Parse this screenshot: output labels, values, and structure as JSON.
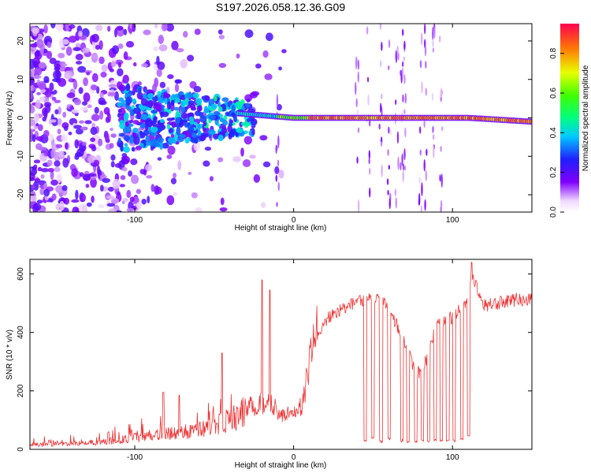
{
  "title": "S197.2026.058.12.36.G09",
  "chart_data": [
    {
      "type": "heatmap",
      "name": "spectrogram",
      "xlabel": "Height of straight line (km)",
      "ylabel": "Frequency (Hz)",
      "xlim": [
        -166,
        150
      ],
      "ylim": [
        -24.5,
        24.5
      ],
      "xticks": [
        -100,
        0,
        100
      ],
      "yticks": [
        -20,
        -10,
        0,
        10,
        20
      ],
      "colorbar": {
        "label": "Normalized spectral amplitude",
        "range": [
          0,
          0.95
        ],
        "ticks": [
          0.0,
          0.2,
          0.4,
          0.6,
          0.8
        ]
      },
      "ridge_frequency_hz": [
        {
          "x": -30,
          "f": 1.0
        },
        {
          "x": 0,
          "f": 0.0
        },
        {
          "x": 110,
          "f": 0.0
        },
        {
          "x": 150,
          "f": -1.0
        }
      ],
      "vertical_streaks_km": [
        -10,
        40,
        47,
        55,
        60,
        65,
        68,
        70,
        80,
        83,
        88,
        93
      ]
    },
    {
      "type": "line",
      "name": "snr",
      "xlabel": "Height of straight line (km)",
      "ylabel": "SNR (10 * v/v)",
      "xlim": [
        -166,
        150
      ],
      "ylim": [
        0,
        650
      ],
      "xticks": [
        -100,
        0,
        100
      ],
      "yticks": [
        0,
        200,
        400,
        600
      ],
      "color": "#ee3333",
      "trend": {
        "x": [
          -166,
          -130,
          -110,
          -90,
          -70,
          -50,
          -35,
          -25,
          -15,
          -5,
          5,
          10,
          15,
          20,
          30,
          40,
          50,
          60,
          65,
          70,
          75,
          80,
          85,
          90,
          100,
          110,
          112,
          120,
          130,
          140,
          150
        ],
        "y": [
          15,
          20,
          30,
          45,
          55,
          75,
          110,
          150,
          150,
          110,
          140,
          280,
          390,
          440,
          480,
          505,
          515,
          490,
          420,
          360,
          290,
          250,
          330,
          420,
          450,
          500,
          600,
          490,
          500,
          510,
          510
        ]
      },
      "dropouts": [
        {
          "x": 45,
          "y": 25
        },
        {
          "x": 50,
          "y": 35
        },
        {
          "x": 55,
          "y": 22
        },
        {
          "x": 60,
          "y": 30
        },
        {
          "x": 68,
          "y": 25
        },
        {
          "x": 72,
          "y": 20
        },
        {
          "x": 77,
          "y": 22
        },
        {
          "x": 81,
          "y": 25
        },
        {
          "x": 85,
          "y": 22
        },
        {
          "x": 89,
          "y": 28
        },
        {
          "x": 93,
          "y": 25
        },
        {
          "x": 97,
          "y": 22
        },
        {
          "x": 101,
          "y": 25
        },
        {
          "x": 106,
          "y": 30
        },
        {
          "x": 110,
          "y": 40
        }
      ],
      "spikes": [
        {
          "x": -82,
          "y": 195
        },
        {
          "x": -72,
          "y": 185
        },
        {
          "x": -45,
          "y": 330
        },
        {
          "x": -20,
          "y": 580
        },
        {
          "x": -15,
          "y": 545
        },
        {
          "x": 112,
          "y": 640
        }
      ]
    }
  ]
}
